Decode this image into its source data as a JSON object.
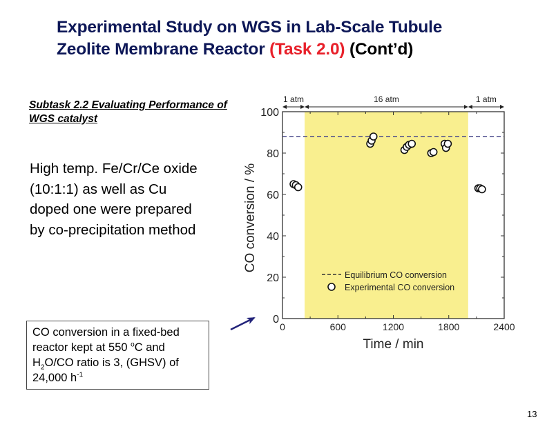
{
  "slide": {
    "title_line1": "Experimental Study on WGS in Lab-Scale Tubule",
    "title_line2_main": "Zeolite Membrane Reactor ",
    "title_line2_task": "(Task 2.0)",
    "title_line2_contd": " (Cont’d)",
    "subtask_heading": "Subtask 2.2 Evaluating Performance of WGS catalyst",
    "description": "High temp. Fe/Cr/Ce oxide (10:1:1) as well as Cu doped one were prepared by co-precipitation method",
    "note": {
      "part1": "CO conversion in a fixed-bed reactor kept at 550 ",
      "deg_sup": "o",
      "part2": "C and H",
      "h2o_sub": "2",
      "part3": "O/CO ratio is 3, (GHSV) of 24,000 h",
      "inv_sup": "-1"
    },
    "page_number": "13",
    "colors": {
      "title": "#0d1757",
      "task_red": "#e8202a",
      "shade": "#f9ef8f",
      "dashed": "#4a4a8c",
      "arrow": "#22237a"
    }
  },
  "chart_data": {
    "type": "scatter",
    "title": "",
    "xlabel": "Time / min",
    "ylabel": "CO conversion / %",
    "xlim": [
      0,
      2400
    ],
    "ylim": [
      0,
      100
    ],
    "xticks": [
      0,
      600,
      1200,
      1800,
      2400
    ],
    "yticks": [
      0,
      20,
      40,
      60,
      80,
      100
    ],
    "x_minor_step": 300,
    "y_minor_step": 10,
    "grid": false,
    "legend_position": "bottom-center",
    "pressure_regions": [
      {
        "label": "1 atm",
        "x_start": 0,
        "x_end": 240,
        "shaded": false
      },
      {
        "label": "16 atm",
        "x_start": 240,
        "x_end": 2010,
        "shaded": true
      },
      {
        "label": "1 atm",
        "x_start": 2010,
        "x_end": 2400,
        "shaded": false
      }
    ],
    "series": [
      {
        "name": "Equilibrium CO conversion",
        "kind": "dashed-line",
        "y": 88
      },
      {
        "name": "Experimental CO conversion",
        "kind": "open-circle",
        "points": [
          {
            "x": 120,
            "y": 65
          },
          {
            "x": 145,
            "y": 64.5
          },
          {
            "x": 170,
            "y": 63.5
          },
          {
            "x": 950,
            "y": 84.5
          },
          {
            "x": 965,
            "y": 86
          },
          {
            "x": 985,
            "y": 88
          },
          {
            "x": 1320,
            "y": 81.5
          },
          {
            "x": 1345,
            "y": 83
          },
          {
            "x": 1370,
            "y": 84
          },
          {
            "x": 1400,
            "y": 84.5
          },
          {
            "x": 1610,
            "y": 80
          },
          {
            "x": 1635,
            "y": 80.5
          },
          {
            "x": 1755,
            "y": 84.5
          },
          {
            "x": 1770,
            "y": 82.5
          },
          {
            "x": 1790,
            "y": 84.5
          },
          {
            "x": 2120,
            "y": 63
          },
          {
            "x": 2140,
            "y": 63
          },
          {
            "x": 2160,
            "y": 62.5
          }
        ]
      }
    ]
  }
}
